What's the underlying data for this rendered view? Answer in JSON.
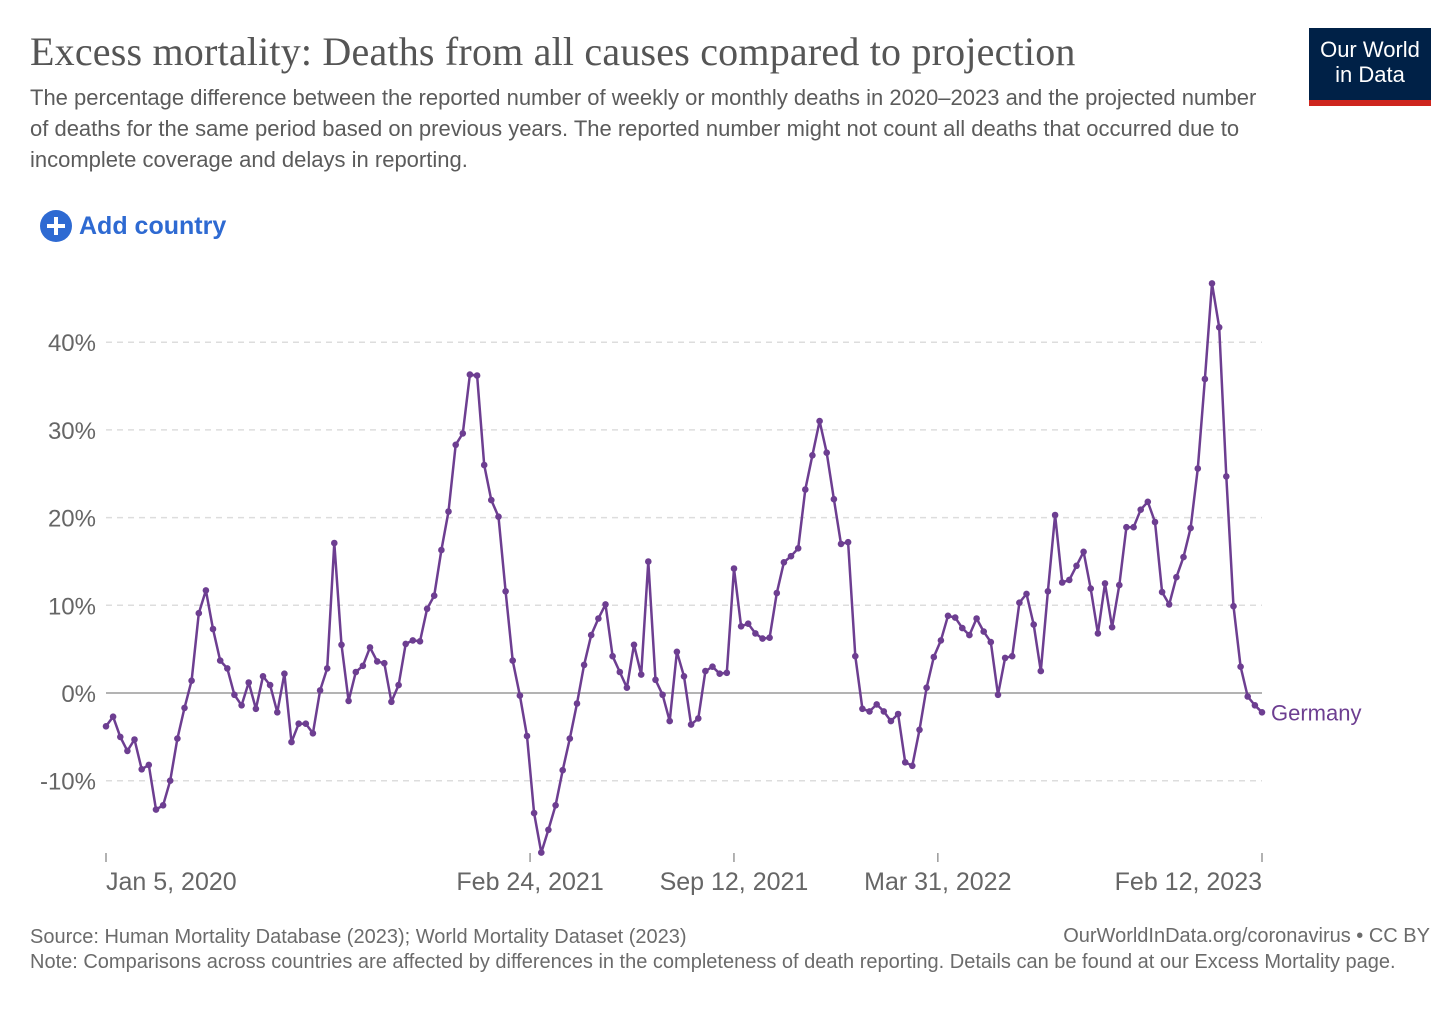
{
  "header": {
    "title": "Excess mortality: Deaths from all causes compared to projection",
    "subtitle": "The percentage difference between the reported number of weekly or monthly deaths in 2020–2023 and the projected number of deaths for the same period based on previous years. The reported number might not count all deaths that occurred due to incomplete coverage and delays in reporting.",
    "logo_line1": "Our World",
    "logo_line2": "in Data"
  },
  "controls": {
    "add_country_label": "Add country",
    "add_icon": "plus-circle-icon"
  },
  "footer": {
    "source": "Source: Human Mortality Database (2023); World Mortality Dataset (2023)",
    "credit": "OurWorldInData.org/coronavirus • CC BY",
    "note": "Note: Comparisons across countries are affected by differences in the completeness of death reporting. Details can be found at our Excess Mortality page."
  },
  "colors": {
    "series": "#6d3e91",
    "accent": "#2e6ad2",
    "logo_bg": "#002147",
    "logo_stripe": "#ce261e"
  },
  "chart_data": {
    "type": "line",
    "title": "Excess mortality: Deaths from all causes compared to projection",
    "ylim": [
      -18,
      47
    ],
    "y_ticks": [
      -10,
      0,
      10,
      20,
      30,
      40
    ],
    "y_tick_labels": [
      "-10%",
      "0%",
      "10%",
      "20%",
      "30%",
      "40%"
    ],
    "x_ticks": [
      "Jan 5, 2020",
      "Feb 24, 2021",
      "Sep 12, 2021",
      "Mar 31, 2022",
      "Feb 12, 2023"
    ],
    "x_range": [
      "Jan 5, 2020",
      "Feb 12, 2023"
    ],
    "grid": true,
    "legend_placement": "right",
    "series": [
      {
        "name": "Germany",
        "values": [
          -3.8,
          -2.7,
          -5.0,
          -6.6,
          -5.3,
          -8.7,
          -8.2,
          -13.3,
          -12.8,
          -10.0,
          -5.2,
          -1.7,
          1.4,
          9.1,
          11.7,
          7.3,
          3.7,
          2.8,
          -0.2,
          -1.4,
          1.2,
          -1.8,
          1.9,
          0.9,
          -2.2,
          2.2,
          -5.6,
          -3.5,
          -3.5,
          -4.6,
          0.3,
          2.8,
          17.1,
          5.5,
          -0.9,
          2.4,
          3.1,
          5.2,
          3.6,
          3.4,
          -1.0,
          0.9,
          5.6,
          6.0,
          5.9,
          9.6,
          11.1,
          16.3,
          20.7,
          28.3,
          29.6,
          36.3,
          36.2,
          26.0,
          22.0,
          20.1,
          11.6,
          3.7,
          -0.3,
          -4.9,
          -13.7,
          -18.2,
          -15.6,
          -12.8,
          -8.8,
          -5.2,
          -1.2,
          3.2,
          6.6,
          8.5,
          10.1,
          4.2,
          2.4,
          0.6,
          5.5,
          2.1,
          15.0,
          1.5,
          -0.2,
          -3.2,
          4.7,
          1.9,
          -3.6,
          -2.9,
          2.5,
          3.0,
          2.2,
          2.3,
          14.2,
          7.6,
          7.9,
          6.8,
          6.2,
          6.3,
          11.4,
          14.9,
          15.6,
          16.5,
          23.2,
          27.1,
          31.0,
          27.4,
          22.1,
          17.0,
          17.2,
          4.2,
          -1.8,
          -2.1,
          -1.3,
          -2.1,
          -3.2,
          -2.4,
          -7.9,
          -8.3,
          -4.2,
          0.6,
          4.1,
          6.0,
          8.8,
          8.6,
          7.4,
          6.6,
          8.5,
          7.0,
          5.8,
          -0.2,
          4.0,
          4.2,
          10.3,
          11.3,
          7.8,
          2.5,
          11.6,
          20.3,
          12.6,
          12.9,
          14.5,
          16.1,
          11.9,
          6.8,
          12.5,
          7.5,
          12.3,
          18.9,
          18.9,
          20.9,
          21.8,
          19.5,
          11.5,
          10.1,
          13.2,
          15.5,
          18.8,
          25.6,
          35.8,
          46.7,
          41.7,
          24.7,
          9.9,
          3.0,
          -0.4,
          -1.4,
          -2.2
        ]
      }
    ]
  }
}
